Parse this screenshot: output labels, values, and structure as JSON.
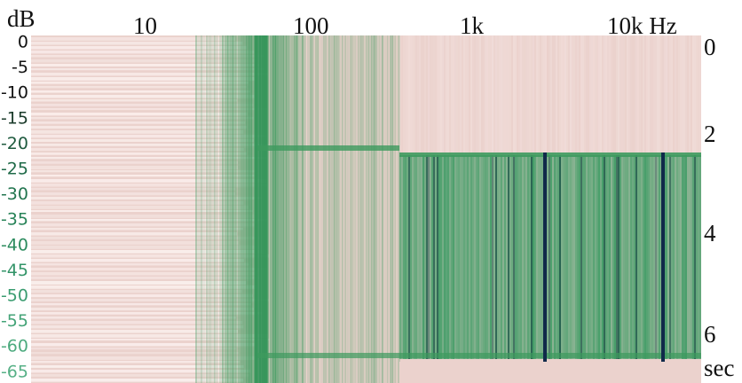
{
  "header": {
    "db_unit": "dB",
    "freq_labels": [
      "10",
      "100",
      "1k",
      "10k Hz"
    ]
  },
  "db_scale": [
    "0",
    "-5",
    "-10",
    "-15",
    "-20",
    "-25",
    "-30",
    "-35",
    "-40",
    "-45",
    "-50",
    "-55",
    "-60",
    "-65"
  ],
  "time_scale": [
    "0",
    "2",
    "4",
    "6"
  ],
  "time_unit": "sec"
}
